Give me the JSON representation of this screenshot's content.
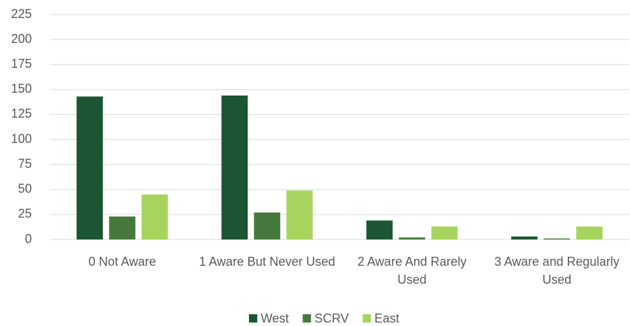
{
  "chart_data": {
    "type": "bar",
    "categories": [
      "0 Not Aware",
      "1 Aware But Never Used",
      "2 Aware And Rarely Used",
      "3 Aware and Regularly Used"
    ],
    "series": [
      {
        "name": "West",
        "color": "#1b5533",
        "values": [
          143,
          144,
          19,
          3
        ]
      },
      {
        "name": "SCRV",
        "color": "#467a3c",
        "values": [
          23,
          27,
          2,
          1
        ]
      },
      {
        "name": "East",
        "color": "#a6d45e",
        "values": [
          45,
          49,
          13,
          13
        ]
      }
    ],
    "ylim": [
      0,
      225
    ],
    "yticks": [
      0,
      25,
      50,
      75,
      100,
      125,
      150,
      175,
      200,
      225
    ],
    "grid": true,
    "legend": "bottom"
  }
}
